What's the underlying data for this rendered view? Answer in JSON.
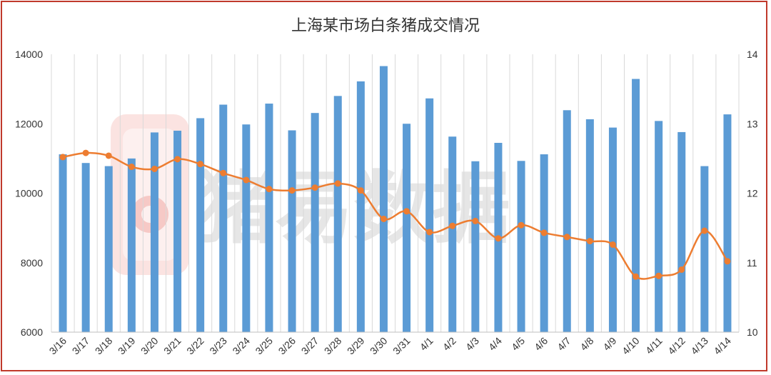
{
  "chart_data": {
    "type": "bar",
    "title": "上海某市场白条猪成交情况",
    "xlabel": "",
    "ylabel": "",
    "categories": [
      "3/16",
      "3/17",
      "3/18",
      "3/19",
      "3/20",
      "3/21",
      "3/22",
      "3/23",
      "3/24",
      "3/25",
      "3/26",
      "3/27",
      "3/28",
      "3/29",
      "3/30",
      "3/31",
      "4/1",
      "4/2",
      "4/3",
      "4/4",
      "4/5",
      "4/6",
      "4/7",
      "4/8",
      "4/9",
      "4/10",
      "4/11",
      "4/12",
      "4/13",
      "4/14"
    ],
    "ylim": [
      6000,
      14000
    ],
    "y_ticks": [
      "6000",
      "8000",
      "10000",
      "12000",
      "14000"
    ],
    "y2lim": [
      10,
      14
    ],
    "y2_ticks": [
      "10",
      "11",
      "12",
      "13",
      "14"
    ],
    "grid": "vertical",
    "series": [
      {
        "kind": "bar",
        "axis": "left",
        "color": "#5b9bd5",
        "values": [
          11120,
          10870,
          10780,
          11000,
          11750,
          11800,
          12160,
          12550,
          11980,
          12580,
          11810,
          12310,
          12800,
          13220,
          13660,
          12000,
          12730,
          11630,
          10920,
          11450,
          10930,
          11120,
          12390,
          12130,
          11890,
          13290,
          12080,
          11760,
          10780,
          12270
        ]
      },
      {
        "kind": "line",
        "axis": "right",
        "color": "#ed7d31",
        "values": [
          12.52,
          12.58,
          12.54,
          12.38,
          12.35,
          12.49,
          12.42,
          12.29,
          12.19,
          12.06,
          12.04,
          12.08,
          12.14,
          12.04,
          11.63,
          11.74,
          11.44,
          11.53,
          11.6,
          11.35,
          11.54,
          11.43,
          11.37,
          11.31,
          11.26,
          10.8,
          10.81,
          10.9,
          11.46,
          11.02
        ]
      }
    ]
  },
  "watermark": {
    "text": "猪易数据",
    "color": "#e6e6e6",
    "logo_color": "#f6c9c6"
  }
}
